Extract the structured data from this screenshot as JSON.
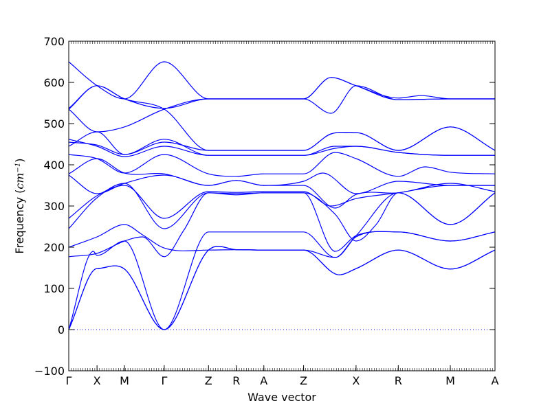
{
  "chart_data": {
    "type": "line",
    "title": "",
    "xlabel": "Wave vector",
    "ylabel": {
      "prefix": "Frequency (",
      "unit": "cm",
      "exponent": "−1",
      "suffix": ")"
    },
    "ylim": [
      -100,
      700
    ],
    "yticks": [
      -100,
      0,
      100,
      200,
      300,
      400,
      500,
      600,
      700
    ],
    "grid": false,
    "legend": "none",
    "colors": {
      "bands": "#0000ff",
      "zero_line": "#0000ff",
      "axes": "#000000"
    },
    "x_range": [
      0,
      10.4
    ],
    "kpoints": [
      {
        "label": "Γ",
        "x": 0.0
      },
      {
        "label": "X",
        "x": 0.69
      },
      {
        "label": "M",
        "x": 1.36
      },
      {
        "label": "Γ",
        "x": 2.33
      },
      {
        "label": "Z",
        "x": 3.41
      },
      {
        "label": "R",
        "x": 4.09
      },
      {
        "label": "A",
        "x": 4.76
      },
      {
        "label": "Z",
        "x": 5.73
      },
      {
        "label": "X",
        "x": 7.01
      },
      {
        "label": "R",
        "x": 8.04
      },
      {
        "label": "M",
        "x": 9.31
      },
      {
        "label": "A",
        "x": 10.4
      }
    ],
    "series": [
      {
        "values": [
          [
            0,
            0
          ],
          [
            0.69,
            148
          ],
          [
            1.36,
            147
          ],
          [
            2.33,
            0
          ],
          [
            3.41,
            193
          ],
          [
            4.09,
            194
          ],
          [
            4.76,
            193
          ],
          [
            5.73,
            193
          ],
          [
            6.6,
            133
          ],
          [
            7.01,
            148
          ],
          [
            8.04,
            193
          ],
          [
            9.31,
            147
          ],
          [
            10.4,
            193
          ]
        ]
      },
      {
        "values": [
          [
            0,
            0
          ],
          [
            0.69,
            148
          ],
          [
            1.36,
            147
          ],
          [
            2.33,
            0
          ],
          [
            3.41,
            193
          ],
          [
            4.09,
            194
          ],
          [
            4.76,
            193
          ],
          [
            5.73,
            193
          ],
          [
            6.6,
            133
          ],
          [
            7.01,
            148
          ],
          [
            8.04,
            193
          ],
          [
            9.31,
            147
          ],
          [
            10.4,
            193
          ]
        ]
      },
      {
        "values": [
          [
            0,
            0
          ],
          [
            0.6,
            190
          ],
          [
            0.69,
            180
          ],
          [
            1.36,
            215
          ],
          [
            2.33,
            0
          ],
          [
            3.41,
            237
          ],
          [
            4.09,
            237
          ],
          [
            4.76,
            237
          ],
          [
            5.73,
            237
          ],
          [
            6.5,
            175
          ],
          [
            7.01,
            225
          ],
          [
            8.04,
            237
          ],
          [
            9.31,
            215
          ],
          [
            10.4,
            237
          ]
        ]
      },
      {
        "values": [
          [
            0,
            177
          ],
          [
            0.69,
            185
          ],
          [
            1.36,
            215
          ],
          [
            1.8,
            225
          ],
          [
            2.33,
            177
          ],
          [
            2.8,
            240
          ],
          [
            3.41,
            332
          ],
          [
            4.09,
            327
          ],
          [
            4.76,
            332
          ],
          [
            5.73,
            332
          ],
          [
            6.5,
            190
          ],
          [
            7.01,
            228
          ],
          [
            8.04,
            237
          ],
          [
            9.31,
            215
          ],
          [
            10.4,
            237
          ]
        ]
      },
      {
        "values": [
          [
            0,
            200
          ],
          [
            0.69,
            225
          ],
          [
            1.36,
            255
          ],
          [
            1.8,
            230
          ],
          [
            2.33,
            198
          ],
          [
            3.41,
            193
          ],
          [
            4.09,
            194
          ],
          [
            4.76,
            193
          ],
          [
            5.73,
            193
          ],
          [
            6.5,
            175
          ],
          [
            7.01,
            228
          ],
          [
            8.04,
            332
          ],
          [
            9.31,
            255
          ],
          [
            10.4,
            332
          ]
        ]
      },
      {
        "values": [
          [
            0,
            245
          ],
          [
            0.69,
            320
          ],
          [
            1.36,
            355
          ],
          [
            2.33,
            245
          ],
          [
            3.41,
            332
          ],
          [
            4.09,
            330
          ],
          [
            4.76,
            332
          ],
          [
            5.73,
            332
          ],
          [
            6.5,
            280
          ],
          [
            7.01,
            215
          ],
          [
            7.5,
            255
          ],
          [
            8.04,
            332
          ],
          [
            9.31,
            255
          ],
          [
            10.4,
            332
          ]
        ]
      },
      {
        "values": [
          [
            0,
            270
          ],
          [
            0.69,
            325
          ],
          [
            1.36,
            350
          ],
          [
            2.33,
            270
          ],
          [
            3.41,
            335
          ],
          [
            4.09,
            333
          ],
          [
            4.76,
            335
          ],
          [
            5.73,
            335
          ],
          [
            6.4,
            300
          ],
          [
            7.01,
            318
          ],
          [
            8.04,
            332
          ],
          [
            9.31,
            350
          ],
          [
            10.4,
            350
          ]
        ]
      },
      {
        "values": [
          [
            0,
            375
          ],
          [
            0.69,
            330
          ],
          [
            1.36,
            355
          ],
          [
            2.33,
            375
          ],
          [
            3.41,
            350
          ],
          [
            4.09,
            362
          ],
          [
            4.76,
            350
          ],
          [
            5.73,
            350
          ],
          [
            6.5,
            295
          ],
          [
            7.01,
            328
          ],
          [
            8.04,
            332
          ],
          [
            9.31,
            355
          ],
          [
            10.4,
            335
          ]
        ]
      },
      {
        "values": [
          [
            0,
            378
          ],
          [
            0.69,
            415
          ],
          [
            1.36,
            380
          ],
          [
            2.33,
            378
          ],
          [
            3.41,
            350
          ],
          [
            4.09,
            362
          ],
          [
            4.76,
            350
          ],
          [
            5.73,
            360
          ],
          [
            6.2,
            380
          ],
          [
            7.01,
            330
          ],
          [
            8.04,
            360
          ],
          [
            9.31,
            350
          ],
          [
            10.4,
            350
          ]
        ]
      },
      {
        "values": [
          [
            0,
            425
          ],
          [
            0.69,
            415
          ],
          [
            1.36,
            380
          ],
          [
            2.33,
            425
          ],
          [
            3.41,
            378
          ],
          [
            4.09,
            372
          ],
          [
            4.76,
            378
          ],
          [
            5.73,
            378
          ],
          [
            6.5,
            430
          ],
          [
            7.01,
            415
          ],
          [
            8.04,
            372
          ],
          [
            8.7,
            395
          ],
          [
            9.31,
            382
          ],
          [
            10.4,
            378
          ]
        ]
      },
      {
        "values": [
          [
            0,
            445
          ],
          [
            0.69,
            480
          ],
          [
            1.36,
            425
          ],
          [
            2.33,
            455
          ],
          [
            3.41,
            435
          ],
          [
            4.09,
            435
          ],
          [
            4.76,
            435
          ],
          [
            5.73,
            435
          ],
          [
            6.4,
            475
          ],
          [
            7.01,
            478
          ],
          [
            8.04,
            435
          ],
          [
            9.31,
            492
          ],
          [
            10.4,
            435
          ]
        ]
      },
      {
        "values": [
          [
            0,
            455
          ],
          [
            0.69,
            448
          ],
          [
            1.36,
            425
          ],
          [
            2.33,
            462
          ],
          [
            3.41,
            423
          ],
          [
            4.09,
            423
          ],
          [
            4.76,
            423
          ],
          [
            5.73,
            423
          ],
          [
            6.5,
            445
          ],
          [
            7.01,
            445
          ],
          [
            8.04,
            430
          ],
          [
            9.31,
            423
          ],
          [
            10.4,
            423
          ]
        ]
      },
      {
        "values": [
          [
            0,
            462
          ],
          [
            0.69,
            445
          ],
          [
            1.36,
            420
          ],
          [
            2.33,
            445
          ],
          [
            3.41,
            423
          ],
          [
            4.09,
            423
          ],
          [
            4.76,
            423
          ],
          [
            5.73,
            423
          ],
          [
            6.5,
            440
          ],
          [
            7.01,
            445
          ],
          [
            8.04,
            430
          ],
          [
            9.31,
            423
          ],
          [
            10.4,
            423
          ]
        ]
      },
      {
        "values": [
          [
            0,
            535
          ],
          [
            0.69,
            480
          ],
          [
            1.36,
            492
          ],
          [
            2.33,
            535
          ],
          [
            3.41,
            560
          ],
          [
            4.09,
            560
          ],
          [
            4.76,
            560
          ],
          [
            5.73,
            560
          ],
          [
            6.4,
            612
          ],
          [
            7.01,
            592
          ],
          [
            8.04,
            558
          ],
          [
            9.31,
            560
          ],
          [
            10.4,
            560
          ]
        ]
      },
      {
        "values": [
          [
            0,
            537
          ],
          [
            0.69,
            592
          ],
          [
            1.36,
            560
          ],
          [
            2.33,
            537
          ],
          [
            3.41,
            560
          ],
          [
            4.09,
            560
          ],
          [
            4.76,
            560
          ],
          [
            5.73,
            560
          ],
          [
            6.4,
            525
          ],
          [
            7.01,
            592
          ],
          [
            8.04,
            558
          ],
          [
            9.31,
            560
          ],
          [
            10.4,
            560
          ]
        ]
      },
      {
        "values": [
          [
            0,
            650
          ],
          [
            0.69,
            592
          ],
          [
            1.36,
            560
          ],
          [
            2.33,
            650
          ],
          [
            3.41,
            560
          ],
          [
            4.09,
            560
          ],
          [
            4.76,
            560
          ],
          [
            5.73,
            560
          ],
          [
            6.4,
            612
          ],
          [
            7.01,
            592
          ],
          [
            8.04,
            562
          ],
          [
            8.6,
            568
          ],
          [
            9.31,
            560
          ],
          [
            10.4,
            560
          ]
        ]
      },
      {
        "values": [
          [
            0,
            535
          ],
          [
            0.69,
            592
          ],
          [
            1.36,
            560
          ],
          [
            2.33,
            535
          ],
          [
            3.41,
            435
          ],
          [
            4.09,
            435
          ],
          [
            4.76,
            435
          ],
          [
            5.73,
            435
          ],
          [
            6.4,
            475
          ],
          [
            7.01,
            478
          ],
          [
            8.04,
            435
          ],
          [
            9.31,
            492
          ],
          [
            10.4,
            435
          ]
        ]
      }
    ]
  }
}
